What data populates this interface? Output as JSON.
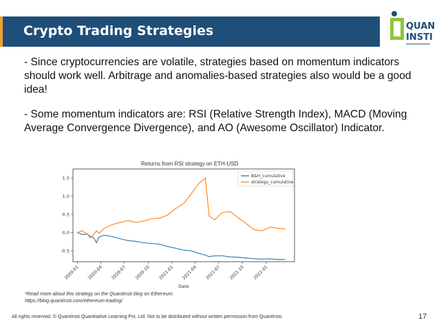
{
  "header": {
    "title": "Crypto Trading Strategies",
    "title_bg": "#1f4e79",
    "accent": "#f0a030"
  },
  "logo": {
    "line1": "QUANT",
    "line2": "INSTI",
    "tagline": "",
    "mark_color": "#8dc63f",
    "text_color": "#1f4e79"
  },
  "content": {
    "bullet1": "- Since cryptocurrencies are volatile, strategies based on momentum indicators should work well. Arbitrage and anomalies-based strategies also would be a good idea!",
    "bullet2": "- Some momentum indicators are: RSI (Relative Strength Index), MACD (Moving Average Convergence Divergence), and AO (Awesome Oscillator) Indicator."
  },
  "chart_data": {
    "type": "line",
    "title": "Returns from RSI strategy on ETH-USD",
    "xlabel": "Date",
    "ylabel": "",
    "x_ticks": [
      "2020-01",
      "2020-04",
      "2020-07",
      "2020-10",
      "2021-01",
      "2021-04",
      "2021-07",
      "2021-10",
      "2022-01"
    ],
    "y_ticks": [
      "1.5",
      "1.0",
      "0.5",
      "0.0",
      "-0.5"
    ],
    "ylim": [
      -0.8,
      1.75
    ],
    "legend_position": "top-right",
    "series": [
      {
        "name": "B&H_cumulative",
        "color": "#1f77b4",
        "x": [
          "2020-01-01",
          "2020-01-20",
          "2020-02-10",
          "2020-02-20",
          "2020-03-05",
          "2020-03-15",
          "2020-03-25",
          "2020-04-15",
          "2020-05-15",
          "2020-06-15",
          "2020-07-15",
          "2020-08-15",
          "2020-09-15",
          "2020-10-15",
          "2020-11-15",
          "2020-12-15",
          "2021-01-15",
          "2021-02-15",
          "2021-03-15",
          "2021-04-15",
          "2021-05-10",
          "2021-05-25",
          "2021-06-15",
          "2021-07-15",
          "2021-08-15",
          "2021-09-15",
          "2021-10-15",
          "2021-11-15",
          "2021-12-15",
          "2022-01-15",
          "2022-02-15",
          "2022-03-15"
        ],
        "values": [
          0.0,
          -0.05,
          -0.05,
          -0.1,
          -0.15,
          -0.28,
          -0.12,
          -0.07,
          -0.11,
          -0.17,
          -0.22,
          -0.24,
          -0.28,
          -0.3,
          -0.32,
          -0.38,
          -0.43,
          -0.48,
          -0.5,
          -0.57,
          -0.62,
          -0.66,
          -0.64,
          -0.64,
          -0.67,
          -0.68,
          -0.7,
          -0.72,
          -0.73,
          -0.72,
          -0.74,
          -0.74
        ]
      },
      {
        "name": "strategy_cumulative",
        "color": "#ff7f0e",
        "x": [
          "2020-01-01",
          "2020-01-20",
          "2020-02-10",
          "2020-02-20",
          "2020-03-05",
          "2020-03-15",
          "2020-03-25",
          "2020-04-15",
          "2020-05-15",
          "2020-06-15",
          "2020-07-15",
          "2020-08-15",
          "2020-09-15",
          "2020-10-15",
          "2020-11-15",
          "2020-12-15",
          "2021-01-15",
          "2021-02-15",
          "2021-03-15",
          "2021-04-15",
          "2021-05-10",
          "2021-05-25",
          "2021-06-15",
          "2021-07-15",
          "2021-08-15",
          "2021-09-15",
          "2021-10-15",
          "2021-11-15",
          "2021-12-15",
          "2022-01-15",
          "2022-02-15",
          "2022-03-15"
        ],
        "values": [
          0.0,
          0.05,
          -0.05,
          -0.15,
          -0.05,
          0.05,
          -0.02,
          0.12,
          0.22,
          0.28,
          0.33,
          0.28,
          0.32,
          0.38,
          0.4,
          0.48,
          0.66,
          0.8,
          1.05,
          1.35,
          1.5,
          0.45,
          0.35,
          0.55,
          0.58,
          0.4,
          0.25,
          0.08,
          0.05,
          0.15,
          0.12,
          0.1
        ]
      }
    ]
  },
  "footnote": {
    "line1": "*Read more about this strategy on the QuantInsti blog on Ethereum.",
    "line2": "https://blog.quantinsti.com/ethereum-trading/"
  },
  "footer": {
    "copyright": "All rights reserved. © QuantInsti Quantitative Learning Pvt. Ltd. Not to be distributed without written permission from QuantInsti.",
    "page_number": "17"
  }
}
